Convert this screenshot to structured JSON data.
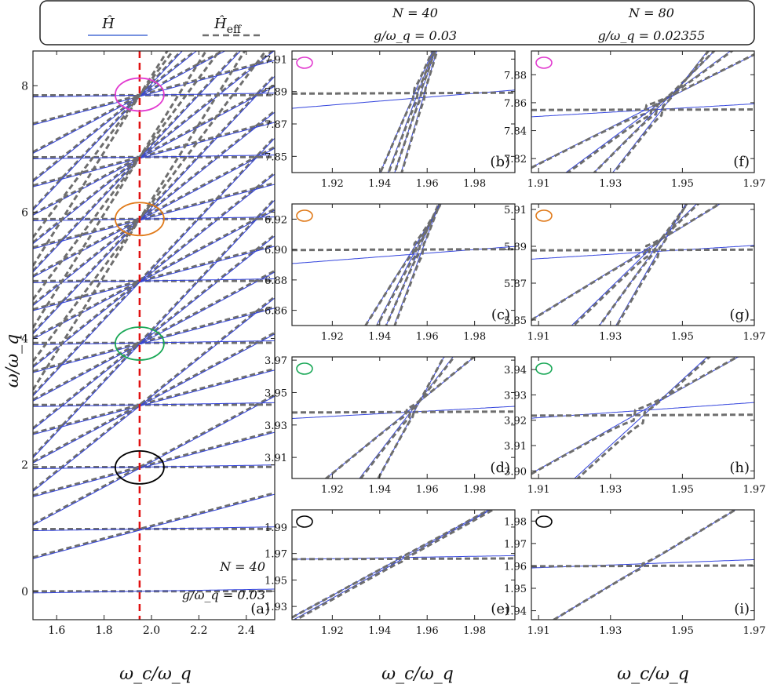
{
  "legend": {
    "exact_label": "Ĥ",
    "effective_label": "Ĥ",
    "effective_subscript": "eff",
    "exact_color": "#4a6fd6",
    "effective_color": "#6e6e6e",
    "col1_n": "N = 40",
    "col1_g": "g/ω_q = 0.03",
    "col2_n": "N = 80",
    "col2_g": "g/ω_q = 0.02355"
  },
  "colors": {
    "exact": "#3344dd",
    "effective": "#6e6e6e",
    "marker": "#e01010",
    "circle_magenta": "#e23bd0",
    "circle_orange": "#e07a1a",
    "circle_green": "#1aa857",
    "circle_black": "#000000"
  },
  "chart_data": [
    {
      "id": "a",
      "type": "line",
      "panel_label": "(a)",
      "xlabel": "ω_c/ω_q",
      "ylabel": "ω/ω_q",
      "xlim": [
        1.5,
        2.52
      ],
      "ylim": [
        -0.45,
        8.55
      ],
      "xticks": [
        1.6,
        1.8,
        2.0,
        2.2,
        2.4
      ],
      "xtick_labels": [
        "1.6",
        "1.8",
        "2.0",
        "2.2",
        "2.4"
      ],
      "yticks": [
        0,
        2,
        4,
        6,
        8
      ],
      "ytick_labels": [
        "0",
        "2",
        "4",
        "6",
        "8"
      ],
      "vertical_marker_x": 1.95,
      "annotation_n": "N = 40",
      "annotation_g": "g/ω_q = 0.03",
      "circles": [
        {
          "x": 1.95,
          "y": 7.86,
          "color": "magenta"
        },
        {
          "x": 1.95,
          "y": 5.89,
          "color": "orange"
        },
        {
          "x": 1.95,
          "y": 3.92,
          "color": "green"
        },
        {
          "x": 1.95,
          "y": 1.96,
          "color": "black"
        }
      ],
      "qubit_levels": [
        0,
        0.985,
        1.965,
        2.95,
        3.93,
        4.91,
        5.89,
        6.87,
        7.85
      ],
      "photon_slopes": [
        1,
        2,
        3,
        4
      ]
    },
    {
      "id": "b",
      "type": "line",
      "panel_label": "(b)",
      "xlim": [
        1.903,
        1.997
      ],
      "ylim": [
        7.84,
        7.915
      ],
      "xticks": [
        1.92,
        1.94,
        1.96,
        1.98
      ],
      "xtick_labels": [
        "1.92",
        "1.94",
        "1.96",
        "1.98"
      ],
      "yticks": [
        7.85,
        7.87,
        7.89,
        7.91
      ],
      "ytick_labels": [
        "7.85",
        "7.87",
        "7.89",
        "7.91"
      ],
      "circle": "magenta",
      "crossing": {
        "x": 1.956,
        "y": 7.886
      },
      "flat_level_eff": 7.889,
      "exact_slope": 0.12,
      "steep_lines": [
        3.4,
        3.9,
        4.4,
        5.0
      ],
      "gap": 0.003
    },
    {
      "id": "c",
      "type": "line",
      "panel_label": "(c)",
      "xlim": [
        1.903,
        1.997
      ],
      "ylim": [
        6.85,
        6.93
      ],
      "xticks": [
        1.92,
        1.94,
        1.96,
        1.98
      ],
      "xtick_labels": [
        "1.92",
        "1.94",
        "1.96",
        "1.98"
      ],
      "yticks": [
        6.86,
        6.88,
        6.9,
        6.92
      ],
      "ytick_labels": [
        "6.86",
        "6.88",
        "6.90",
        "6.92"
      ],
      "circle": "orange",
      "crossing": {
        "x": 1.955,
        "y": 6.897
      },
      "flat_level_eff": 6.9,
      "exact_slope": 0.12,
      "steep_lines": [
        2.5,
        3.0,
        3.6,
        4.2
      ],
      "gap": 0.003
    },
    {
      "id": "d",
      "type": "line",
      "panel_label": "(d)",
      "xlim": [
        1.903,
        1.997
      ],
      "ylim": [
        3.897,
        3.972
      ],
      "xticks": [
        1.92,
        1.94,
        1.96,
        1.98
      ],
      "xtick_labels": [
        "1.92",
        "1.94",
        "1.96",
        "1.98"
      ],
      "yticks": [
        3.91,
        3.93,
        3.95,
        3.97
      ],
      "ytick_labels": [
        "3.91",
        "3.93",
        "3.95",
        "3.97"
      ],
      "circle": "green",
      "crossing": {
        "x": 1.953,
        "y": 3.938
      },
      "flat_level_eff": 3.938,
      "exact_slope": 0.08,
      "steep_lines": [
        1.2,
        1.9,
        2.7
      ],
      "gap": 0.002
    },
    {
      "id": "e",
      "type": "line",
      "panel_label": "(e)",
      "xlim": [
        1.903,
        1.997
      ],
      "ylim": [
        1.92,
        2.003
      ],
      "xticks": [
        1.92,
        1.94,
        1.96,
        1.98
      ],
      "xtick_labels": [
        "1.92",
        "1.94",
        "1.96",
        "1.98"
      ],
      "yticks": [
        1.93,
        1.95,
        1.97,
        1.99
      ],
      "ytick_labels": [
        "1.93",
        "1.95",
        "1.97",
        "1.99"
      ],
      "circle": "black",
      "crossing": {
        "x": 1.95,
        "y": 1.967
      },
      "flat_level_eff": 1.966,
      "exact_slope": 0.03,
      "steep_lines": [
        0.98,
        1.0
      ],
      "gap": 0.001
    },
    {
      "id": "f",
      "type": "line",
      "panel_label": "(f)",
      "xlim": [
        1.908,
        1.97
      ],
      "ylim": [
        7.81,
        7.897
      ],
      "xticks": [
        1.91,
        1.93,
        1.95,
        1.97
      ],
      "xtick_labels": [
        "1.91",
        "1.93",
        "1.95",
        "1.97"
      ],
      "yticks": [
        7.82,
        7.84,
        7.86,
        7.88
      ],
      "ytick_labels": [
        "7.82",
        "7.84",
        "7.86",
        "7.88"
      ],
      "circle": "magenta",
      "crossing": {
        "x": 1.942,
        "y": 7.855
      },
      "flat_level_eff": 7.855,
      "exact_slope": 0.15,
      "steep_lines": [
        1.3,
        1.9,
        2.6,
        3.3
      ],
      "gap": 0.003
    },
    {
      "id": "g",
      "type": "line",
      "panel_label": "(g)",
      "xlim": [
        1.908,
        1.97
      ],
      "ylim": [
        5.847,
        5.913
      ],
      "xticks": [
        1.91,
        1.93,
        1.95,
        1.97
      ],
      "xtick_labels": [
        "1.91",
        "1.93",
        "1.95",
        "1.97"
      ],
      "yticks": [
        5.85,
        5.87,
        5.89,
        5.91
      ],
      "ytick_labels": [
        "5.85",
        "5.87",
        "5.89",
        "5.91"
      ],
      "circle": "orange",
      "crossing": {
        "x": 1.941,
        "y": 5.887
      },
      "flat_level_eff": 5.888,
      "exact_slope": 0.12,
      "steep_lines": [
        1.2,
        1.9,
        2.7,
        3.4
      ],
      "gap": 0.002
    },
    {
      "id": "h",
      "type": "line",
      "panel_label": "(h)",
      "xlim": [
        1.908,
        1.97
      ],
      "ylim": [
        3.897,
        3.945
      ],
      "xticks": [
        1.91,
        1.93,
        1.95,
        1.97
      ],
      "xtick_labels": [
        "1.91",
        "1.93",
        "1.95",
        "1.97"
      ],
      "yticks": [
        3.9,
        3.91,
        3.92,
        3.93,
        3.94
      ],
      "ytick_labels": [
        "3.90",
        "3.91",
        "3.92",
        "3.93",
        "3.94"
      ],
      "circle": "green",
      "crossing": {
        "x": 1.94,
        "y": 3.924
      },
      "flat_level_eff": 3.922,
      "exact_slope": 0.1,
      "steep_lines": [
        0.8,
        1.3
      ],
      "gap": 0.002
    },
    {
      "id": "i",
      "type": "line",
      "panel_label": "(i)",
      "xlim": [
        1.908,
        1.97
      ],
      "ylim": [
        1.936,
        1.985
      ],
      "xticks": [
        1.91,
        1.93,
        1.95,
        1.97
      ],
      "xtick_labels": [
        "1.91",
        "1.93",
        "1.95",
        "1.97"
      ],
      "yticks": [
        1.94,
        1.95,
        1.96,
        1.97,
        1.98
      ],
      "ytick_labels": [
        "1.94",
        "1.95",
        "1.96",
        "1.97",
        "1.98"
      ],
      "circle": "black",
      "crossing": {
        "x": 1.94,
        "y": 1.961
      },
      "flat_level_eff": 1.96,
      "exact_slope": 0.06,
      "steep_lines": [
        0.97
      ],
      "gap": 0.001
    }
  ]
}
